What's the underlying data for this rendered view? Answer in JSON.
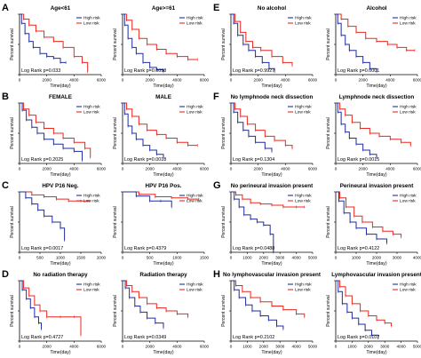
{
  "colors": {
    "high": "#1f2d9e",
    "low": "#e8281f",
    "axis": "#000000"
  },
  "common": {
    "xlabel": "Time(day)",
    "ylabel": "Percent survival",
    "high_label": "High risk",
    "low_label": "Low risk"
  },
  "panels": [
    {
      "letter": "A",
      "title": "Age<61",
      "pvalue": "Log Rank p=0.033",
      "xticks": [
        0,
        2000,
        4000,
        6000
      ],
      "xmax": 6000,
      "high": [
        [
          0,
          1
        ],
        [
          150,
          0.85
        ],
        [
          400,
          0.68
        ],
        [
          700,
          0.55
        ],
        [
          1000,
          0.45
        ],
        [
          1500,
          0.35
        ],
        [
          2000,
          0.3
        ],
        [
          2500,
          0.27
        ],
        [
          3000,
          0.2
        ],
        [
          3400,
          0.2
        ]
      ],
      "low": [
        [
          0,
          1
        ],
        [
          300,
          0.92
        ],
        [
          700,
          0.82
        ],
        [
          1200,
          0.72
        ],
        [
          1800,
          0.62
        ],
        [
          2500,
          0.55
        ],
        [
          3200,
          0.45
        ],
        [
          4000,
          0.3
        ],
        [
          4600,
          0.2
        ],
        [
          5000,
          0.05
        ]
      ]
    },
    {
      "letter": "",
      "title": "Age>=61",
      "pvalue": "Log Rank p=0.0098",
      "xticks": [
        0,
        2000,
        4000,
        6000
      ],
      "xmax": 6000,
      "high": [
        [
          0,
          1
        ],
        [
          150,
          0.82
        ],
        [
          400,
          0.6
        ],
        [
          700,
          0.45
        ],
        [
          1000,
          0.35
        ],
        [
          1500,
          0.2
        ],
        [
          2000,
          0.12
        ],
        [
          2500,
          0.08
        ],
        [
          3000,
          0.05
        ]
      ],
      "low": [
        [
          0,
          1
        ],
        [
          300,
          0.9
        ],
        [
          700,
          0.75
        ],
        [
          1200,
          0.6
        ],
        [
          1800,
          0.5
        ],
        [
          2500,
          0.42
        ],
        [
          3200,
          0.35
        ],
        [
          4000,
          0.3
        ],
        [
          4800,
          0.25
        ],
        [
          5500,
          0.25
        ]
      ]
    },
    {
      "letter": "E",
      "title": "No alcohol",
      "pvalue": "Log Rank p=0.9927",
      "xticks": [
        0,
        2000,
        4000,
        6000
      ],
      "xmax": 6000,
      "high": [
        [
          0,
          1
        ],
        [
          200,
          0.85
        ],
        [
          500,
          0.65
        ],
        [
          900,
          0.5
        ],
        [
          1300,
          0.4
        ],
        [
          1800,
          0.3
        ],
        [
          2300,
          0.2
        ],
        [
          2800,
          0.1
        ],
        [
          3200,
          0.05
        ]
      ],
      "low": [
        [
          0,
          1
        ],
        [
          300,
          0.88
        ],
        [
          700,
          0.7
        ],
        [
          1100,
          0.55
        ],
        [
          1600,
          0.45
        ],
        [
          2200,
          0.4
        ],
        [
          3000,
          0.3
        ],
        [
          3800,
          0.2
        ],
        [
          4500,
          0.15
        ]
      ]
    },
    {
      "letter": "",
      "title": "Alcohol",
      "pvalue": "Log Rank p=0.0001",
      "xticks": [
        0,
        2000,
        4000,
        6000
      ],
      "xmax": 6000,
      "high": [
        [
          0,
          1
        ],
        [
          150,
          0.85
        ],
        [
          400,
          0.65
        ],
        [
          700,
          0.5
        ],
        [
          1000,
          0.4
        ],
        [
          1500,
          0.3
        ],
        [
          2000,
          0.2
        ],
        [
          2500,
          0.1
        ],
        [
          3000,
          0.05
        ]
      ],
      "low": [
        [
          0,
          1
        ],
        [
          400,
          0.92
        ],
        [
          900,
          0.8
        ],
        [
          1500,
          0.7
        ],
        [
          2200,
          0.6
        ],
        [
          3000,
          0.55
        ],
        [
          3800,
          0.5
        ],
        [
          4500,
          0.45
        ],
        [
          5200,
          0.4
        ],
        [
          5800,
          0.4
        ]
      ]
    },
    {
      "letter": "B",
      "title": "FEMALE",
      "pvalue": "Log Rank p=0.2025",
      "xticks": [
        0,
        2000,
        4000,
        6000
      ],
      "xmax": 6000,
      "high": [
        [
          0,
          1
        ],
        [
          200,
          0.88
        ],
        [
          500,
          0.72
        ],
        [
          900,
          0.6
        ],
        [
          1300,
          0.5
        ],
        [
          1800,
          0.4
        ],
        [
          2500,
          0.32
        ],
        [
          3200,
          0.25
        ],
        [
          4000,
          0.2
        ],
        [
          4600,
          0.05
        ]
      ],
      "low": [
        [
          0,
          1
        ],
        [
          300,
          0.9
        ],
        [
          700,
          0.8
        ],
        [
          1200,
          0.68
        ],
        [
          1800,
          0.58
        ],
        [
          2500,
          0.5
        ],
        [
          3200,
          0.42
        ],
        [
          4000,
          0.35
        ],
        [
          4800,
          0.25
        ],
        [
          5200,
          0.1
        ]
      ]
    },
    {
      "letter": "",
      "title": "MALE",
      "pvalue": "Log Rank p=0.0018",
      "xticks": [
        0,
        2000,
        4000,
        6000
      ],
      "xmax": 6000,
      "high": [
        [
          0,
          1
        ],
        [
          150,
          0.82
        ],
        [
          400,
          0.62
        ],
        [
          700,
          0.5
        ],
        [
          1000,
          0.4
        ],
        [
          1500,
          0.3
        ],
        [
          2000,
          0.22
        ],
        [
          2500,
          0.15
        ],
        [
          3000,
          0.1
        ]
      ],
      "low": [
        [
          0,
          1
        ],
        [
          300,
          0.9
        ],
        [
          700,
          0.78
        ],
        [
          1200,
          0.65
        ],
        [
          1800,
          0.55
        ],
        [
          2500,
          0.48
        ],
        [
          3200,
          0.42
        ],
        [
          4000,
          0.35
        ],
        [
          4800,
          0.3
        ],
        [
          5500,
          0.3
        ]
      ]
    },
    {
      "letter": "F",
      "title": "No lymphnode neck dissection",
      "pvalue": "Log Rank p=0.1304",
      "xticks": [
        0,
        2000,
        4000,
        6000
      ],
      "xmax": 6000,
      "high": [
        [
          0,
          1
        ],
        [
          200,
          0.85
        ],
        [
          500,
          0.68
        ],
        [
          900,
          0.55
        ],
        [
          1300,
          0.45
        ],
        [
          1800,
          0.35
        ],
        [
          2500,
          0.25
        ],
        [
          3000,
          0.2
        ]
      ],
      "low": [
        [
          0,
          1
        ],
        [
          300,
          0.9
        ],
        [
          700,
          0.78
        ],
        [
          1200,
          0.65
        ],
        [
          1800,
          0.55
        ],
        [
          2500,
          0.45
        ],
        [
          3200,
          0.38
        ],
        [
          4000,
          0.3
        ],
        [
          4500,
          0.25
        ]
      ]
    },
    {
      "letter": "",
      "title": "Lymphnode neck dissection",
      "pvalue": "Log Rank p=0.0015",
      "xticks": [
        0,
        2000,
        4000,
        6000
      ],
      "xmax": 6000,
      "high": [
        [
          0,
          1
        ],
        [
          150,
          0.85
        ],
        [
          400,
          0.65
        ],
        [
          700,
          0.52
        ],
        [
          1000,
          0.42
        ],
        [
          1500,
          0.32
        ],
        [
          2000,
          0.22
        ],
        [
          2500,
          0.15
        ],
        [
          3000,
          0.1
        ]
      ],
      "low": [
        [
          0,
          1
        ],
        [
          300,
          0.9
        ],
        [
          700,
          0.8
        ],
        [
          1200,
          0.68
        ],
        [
          1800,
          0.58
        ],
        [
          2500,
          0.5
        ],
        [
          3200,
          0.45
        ],
        [
          4000,
          0.4
        ],
        [
          4800,
          0.35
        ],
        [
          5500,
          0.3
        ]
      ]
    },
    {
      "letter": "C",
      "title": "HPV P16 Neg.",
      "pvalue": "Log Rank p=0.0017",
      "xticks": [
        0,
        500,
        1000,
        1500,
        2000
      ],
      "xmax": 2000,
      "high": [
        [
          0,
          1
        ],
        [
          150,
          0.9
        ],
        [
          300,
          0.8
        ],
        [
          450,
          0.7
        ],
        [
          600,
          0.6
        ],
        [
          800,
          0.5
        ],
        [
          1000,
          0.4
        ],
        [
          1100,
          0.2
        ]
      ],
      "low": [
        [
          0,
          1
        ],
        [
          300,
          0.95
        ],
        [
          600,
          0.92
        ],
        [
          900,
          0.88
        ],
        [
          1200,
          0.85
        ],
        [
          1500,
          0.85
        ],
        [
          1700,
          0.85
        ]
      ]
    },
    {
      "letter": "",
      "title": "HPV P16 Pos.",
      "pvalue": "Log Rank p=0.4379",
      "xticks": [
        0,
        500,
        1000,
        1500
      ],
      "xmax": 1500,
      "high": [
        [
          0,
          1
        ],
        [
          250,
          0.93
        ],
        [
          500,
          0.85
        ],
        [
          700,
          0.85
        ],
        [
          900,
          0.75
        ]
      ],
      "low": [
        [
          0,
          1
        ],
        [
          300,
          0.96
        ],
        [
          600,
          0.92
        ],
        [
          900,
          0.9
        ],
        [
          1200,
          0.88
        ],
        [
          1400,
          0.88
        ]
      ]
    },
    {
      "letter": "G",
      "title": "No perineural invasion present",
      "pvalue": "Log Rank p=0.0488",
      "xticks": [
        0,
        1000,
        2000,
        3000,
        4000,
        5000
      ],
      "xmax": 5000,
      "high": [
        [
          0,
          1
        ],
        [
          200,
          0.88
        ],
        [
          500,
          0.75
        ],
        [
          800,
          0.62
        ],
        [
          1200,
          0.55
        ],
        [
          1600,
          0.5
        ],
        [
          2000,
          0.45
        ],
        [
          2400,
          0.3
        ],
        [
          2600,
          0
        ]
      ],
      "low": [
        [
          0,
          1
        ],
        [
          300,
          0.95
        ],
        [
          700,
          0.88
        ],
        [
          1200,
          0.82
        ],
        [
          1800,
          0.8
        ],
        [
          2500,
          0.78
        ],
        [
          3200,
          0.75
        ],
        [
          4000,
          0.75
        ],
        [
          4500,
          0.75
        ]
      ]
    },
    {
      "letter": "",
      "title": "Perineural invasion present",
      "pvalue": "Log Rank p=0.4122",
      "xticks": [
        0,
        1000,
        2000,
        3000,
        4000
      ],
      "xmax": 4000,
      "high": [
        [
          0,
          1
        ],
        [
          150,
          0.85
        ],
        [
          400,
          0.65
        ],
        [
          700,
          0.5
        ],
        [
          1000,
          0.4
        ],
        [
          1500,
          0.3
        ],
        [
          2000,
          0.22
        ],
        [
          2500,
          0.15
        ]
      ],
      "low": [
        [
          0,
          1
        ],
        [
          200,
          0.9
        ],
        [
          500,
          0.75
        ],
        [
          900,
          0.6
        ],
        [
          1300,
          0.5
        ],
        [
          1800,
          0.42
        ],
        [
          2300,
          0.35
        ],
        [
          2800,
          0.3
        ],
        [
          3200,
          0.25
        ]
      ]
    },
    {
      "letter": "D",
      "title": "No radiation therapy",
      "pvalue": "Log Rank p=0.4727",
      "xticks": [
        0,
        2000,
        4000,
        6000
      ],
      "xmax": 6000,
      "high": [
        [
          0,
          1
        ],
        [
          200,
          0.85
        ],
        [
          500,
          0.7
        ],
        [
          800,
          0.55
        ],
        [
          1100,
          0.4
        ],
        [
          1400,
          0.3
        ],
        [
          1600,
          0.2
        ]
      ],
      "low": [
        [
          0,
          1
        ],
        [
          300,
          0.88
        ],
        [
          700,
          0.75
        ],
        [
          1100,
          0.6
        ],
        [
          1500,
          0.5
        ],
        [
          2000,
          0.4
        ],
        [
          3000,
          0.4
        ],
        [
          4000,
          0.4
        ],
        [
          4500,
          0.1
        ]
      ]
    },
    {
      "letter": "",
      "title": "Radiation therapy",
      "pvalue": "Log Rank p=0.0349",
      "xticks": [
        0,
        2000,
        4000,
        6000
      ],
      "xmax": 6000,
      "high": [
        [
          0,
          1
        ],
        [
          200,
          0.88
        ],
        [
          500,
          0.72
        ],
        [
          900,
          0.58
        ],
        [
          1300,
          0.48
        ],
        [
          1800,
          0.38
        ],
        [
          2400,
          0.3
        ],
        [
          3000,
          0.22
        ]
      ],
      "low": [
        [
          0,
          1
        ],
        [
          300,
          0.92
        ],
        [
          700,
          0.82
        ],
        [
          1200,
          0.72
        ],
        [
          1800,
          0.62
        ],
        [
          2500,
          0.55
        ],
        [
          3200,
          0.5
        ],
        [
          4000,
          0.45
        ],
        [
          4800,
          0.4
        ]
      ]
    },
    {
      "letter": "H",
      "title": "No lymphovascular invasion present",
      "pvalue": "Log Rank p=0.2102",
      "xticks": [
        0,
        1000,
        2000,
        3000,
        4000,
        5000
      ],
      "xmax": 5000,
      "high": [
        [
          0,
          1
        ],
        [
          200,
          0.85
        ],
        [
          500,
          0.72
        ],
        [
          900,
          0.6
        ],
        [
          1300,
          0.5
        ],
        [
          1800,
          0.42
        ],
        [
          2300,
          0.35
        ],
        [
          2800,
          0.25
        ],
        [
          3200,
          0.2
        ]
      ],
      "low": [
        [
          0,
          1
        ],
        [
          300,
          0.92
        ],
        [
          700,
          0.82
        ],
        [
          1200,
          0.72
        ],
        [
          1800,
          0.65
        ],
        [
          2500,
          0.58
        ],
        [
          3200,
          0.52
        ],
        [
          4000,
          0.45
        ],
        [
          4500,
          0.4
        ]
      ]
    },
    {
      "letter": "",
      "title": "Lymphovascular invasion present",
      "pvalue": "Log Rank p=0.0107",
      "xticks": [
        0,
        1000,
        2000,
        3000,
        4000,
        5000
      ],
      "xmax": 5000,
      "high": [
        [
          0,
          1
        ],
        [
          150,
          0.82
        ],
        [
          400,
          0.62
        ],
        [
          700,
          0.48
        ],
        [
          1000,
          0.38
        ],
        [
          1400,
          0.28
        ],
        [
          1800,
          0.18
        ],
        [
          2200,
          0.1
        ],
        [
          2600,
          0.05
        ]
      ],
      "low": [
        [
          0,
          1
        ],
        [
          250,
          0.9
        ],
        [
          600,
          0.75
        ],
        [
          1000,
          0.62
        ],
        [
          1500,
          0.5
        ],
        [
          2000,
          0.42
        ],
        [
          2500,
          0.35
        ],
        [
          3000,
          0.3
        ],
        [
          3400,
          0.25
        ]
      ]
    }
  ],
  "chart_data": {
    "type": "line",
    "description_units": "survival probability vs time in days",
    "ylim": [
      0,
      1
    ],
    "panels_ref": "panels"
  }
}
